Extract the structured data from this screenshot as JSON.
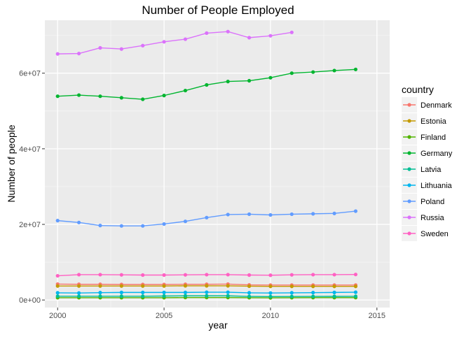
{
  "chart_data": {
    "type": "line",
    "title": "Number of People Employed",
    "xlabel": "year",
    "ylabel": "Number of people",
    "xlim": [
      1999.4,
      2015.6
    ],
    "ylim": [
      -2000000,
      74000000
    ],
    "x_ticks": [
      2000,
      2005,
      2010,
      2015
    ],
    "x_tick_labels": [
      "2000",
      "2005",
      "2010",
      "2015"
    ],
    "y_ticks": [
      0,
      20000000,
      40000000,
      60000000
    ],
    "y_tick_labels": [
      "0e+00",
      "2e+07",
      "4e+07",
      "6e+07"
    ],
    "grid": true,
    "legend_position": "right",
    "legend_title": "country",
    "series": [
      {
        "name": "Denmark",
        "color": "#F8766D",
        "x": [
          2000,
          2001,
          2002,
          2003,
          2004,
          2005,
          2006,
          2007,
          2008,
          2009,
          2010,
          2011,
          2012,
          2013,
          2014
        ],
        "values": [
          4200000,
          4150000,
          4150000,
          4100000,
          4100000,
          4100000,
          4150000,
          4150000,
          4200000,
          4000000,
          3950000,
          3950000,
          3950000,
          3950000,
          3950000
        ]
      },
      {
        "name": "Estonia",
        "color": "#C49A00",
        "x": [
          2000,
          2001,
          2002,
          2003,
          2004,
          2005,
          2006,
          2007,
          2008,
          2009,
          2010,
          2011,
          2012,
          2013,
          2014
        ],
        "values": [
          3700000,
          3700000,
          3700000,
          3700000,
          3700000,
          3700000,
          3750000,
          3750000,
          3750000,
          3650000,
          3600000,
          3600000,
          3600000,
          3600000,
          3600000
        ]
      },
      {
        "name": "Finland",
        "color": "#53B400",
        "x": [
          2000,
          2001,
          2002,
          2003,
          2004,
          2005,
          2006,
          2007,
          2008,
          2009,
          2010,
          2011,
          2012,
          2013,
          2014
        ],
        "values": [
          600000,
          600000,
          600000,
          600000,
          600000,
          600000,
          650000,
          650000,
          650000,
          600000,
          570000,
          600000,
          620000,
          620000,
          630000
        ]
      },
      {
        "name": "Germany",
        "color": "#00B52F",
        "x": [
          2000,
          2001,
          2002,
          2003,
          2004,
          2005,
          2006,
          2007,
          2008,
          2009,
          2010,
          2011,
          2012,
          2013,
          2014
        ],
        "values": [
          53900000,
          54200000,
          53900000,
          53500000,
          53100000,
          54100000,
          55400000,
          56900000,
          57800000,
          58000000,
          58800000,
          60000000,
          60300000,
          60700000,
          61000000
        ]
      },
      {
        "name": "Latvia",
        "color": "#00BE95",
        "x": [
          2000,
          2001,
          2002,
          2003,
          2004,
          2005,
          2006,
          2007,
          2008,
          2009,
          2010,
          2011,
          2012,
          2013,
          2014
        ],
        "values": [
          1000000,
          1000000,
          1000000,
          1000000,
          1000000,
          1050000,
          1100000,
          1100000,
          1100000,
          950000,
          900000,
          920000,
          950000,
          960000,
          970000
        ]
      },
      {
        "name": "Lithuania",
        "color": "#00B5EE",
        "x": [
          2000,
          2001,
          2002,
          2003,
          2004,
          2005,
          2006,
          2007,
          2008,
          2009,
          2010,
          2011,
          2012,
          2013,
          2014
        ],
        "values": [
          1900000,
          1850000,
          1950000,
          2000000,
          2000000,
          2000000,
          2000000,
          2050000,
          2050000,
          1900000,
          1850000,
          1900000,
          1950000,
          2000000,
          2050000
        ]
      },
      {
        "name": "Poland",
        "color": "#619CFF",
        "x": [
          2000,
          2001,
          2002,
          2003,
          2004,
          2005,
          2006,
          2007,
          2008,
          2009,
          2010,
          2011,
          2012,
          2013,
          2014
        ],
        "values": [
          21000000,
          20500000,
          19700000,
          19600000,
          19600000,
          20100000,
          20800000,
          21800000,
          22600000,
          22700000,
          22500000,
          22700000,
          22800000,
          22900000,
          23500000
        ]
      },
      {
        "name": "Russia",
        "color": "#DB72FB",
        "x": [
          2000,
          2001,
          2002,
          2003,
          2004,
          2005,
          2006,
          2007,
          2008,
          2009,
          2010,
          2011
        ],
        "values": [
          65100000,
          65200000,
          66700000,
          66400000,
          67300000,
          68300000,
          69000000,
          70600000,
          71000000,
          69400000,
          69900000,
          70800000
        ]
      },
      {
        "name": "Sweden",
        "color": "#FF61C3",
        "x": [
          2000,
          2001,
          2002,
          2003,
          2004,
          2005,
          2006,
          2007,
          2008,
          2009,
          2010,
          2011,
          2012,
          2013,
          2014
        ],
        "values": [
          6400000,
          6700000,
          6700000,
          6650000,
          6600000,
          6600000,
          6650000,
          6700000,
          6700000,
          6600000,
          6550000,
          6650000,
          6700000,
          6700000,
          6750000
        ]
      }
    ]
  }
}
